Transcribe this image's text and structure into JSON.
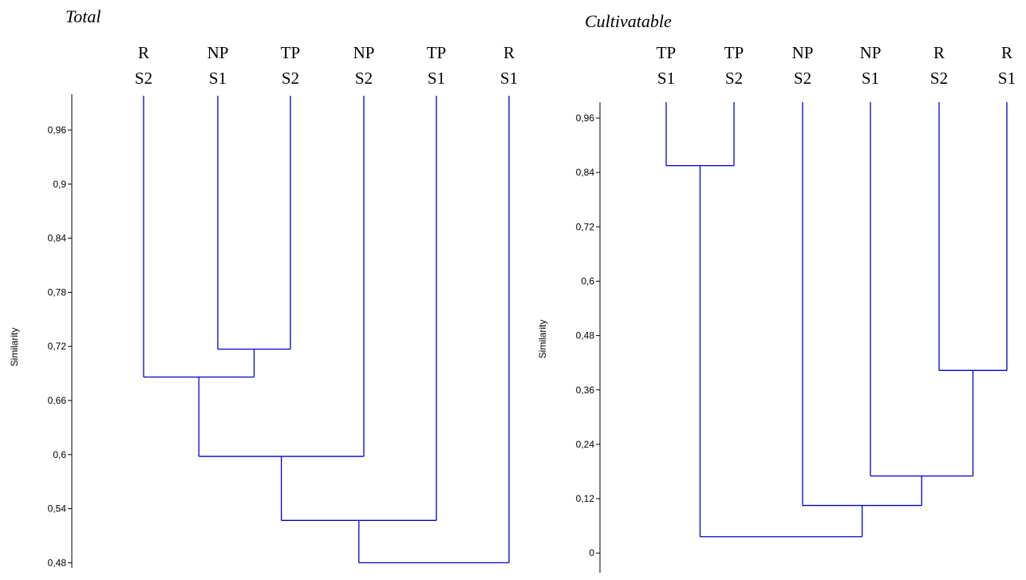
{
  "chart_data": [
    {
      "type": "dendrogram",
      "title": "Total",
      "ylabel": "Similarity",
      "ylim": [
        0.48,
        1.0
      ],
      "yticks": [
        0.48,
        0.54,
        0.6,
        0.66,
        0.72,
        0.78,
        0.84,
        0.9,
        0.96
      ],
      "ytick_labels": [
        "0,48",
        "0,54",
        "0,6",
        "0,66",
        "0,72",
        "0,78",
        "0,84",
        "0,9",
        "0,96"
      ],
      "leaves": [
        {
          "top": "R",
          "bottom": "S2"
        },
        {
          "top": "NP",
          "bottom": "S1"
        },
        {
          "top": "TP",
          "bottom": "S2"
        },
        {
          "top": "NP",
          "bottom": "S2"
        },
        {
          "top": "TP",
          "bottom": "S1"
        },
        {
          "top": "R",
          "bottom": "S1"
        }
      ],
      "merges": [
        {
          "left": 1,
          "right": 2,
          "similarity": 0.717
        },
        {
          "left": 0,
          "right": 6,
          "similarity": 0.686
        },
        {
          "left": 7,
          "right": 3,
          "similarity": 0.598
        },
        {
          "left": 8,
          "right": 4,
          "similarity": 0.527
        },
        {
          "left": 9,
          "right": 5,
          "similarity": 0.48
        }
      ],
      "line_color": "#0000cc"
    },
    {
      "type": "dendrogram",
      "title": "Cultivatable",
      "ylabel": "Similarity",
      "ylim": [
        -0.06,
        1.0
      ],
      "yticks": [
        0,
        0.12,
        0.24,
        0.36,
        0.48,
        0.6,
        0.72,
        0.84,
        0.96
      ],
      "ytick_labels": [
        "0",
        "0,12",
        "0,24",
        "0,36",
        "0,48",
        "0,6",
        "0,72",
        "0,84",
        "0,96"
      ],
      "leaves": [
        {
          "top": "TP",
          "bottom": "S1"
        },
        {
          "top": "TP",
          "bottom": "S2"
        },
        {
          "top": "NP",
          "bottom": "S2"
        },
        {
          "top": "NP",
          "bottom": "S1"
        },
        {
          "top": "R",
          "bottom": "S2"
        },
        {
          "top": "R",
          "bottom": "S1"
        }
      ],
      "merges": [
        {
          "left": 0,
          "right": 1,
          "similarity": 0.855
        },
        {
          "left": 4,
          "right": 5,
          "similarity": 0.403
        },
        {
          "left": 3,
          "right": 7,
          "similarity": 0.17
        },
        {
          "left": 2,
          "right": 8,
          "similarity": 0.105
        },
        {
          "left": 6,
          "right": 9,
          "similarity": 0.036
        }
      ],
      "line_color": "#0000cc"
    }
  ]
}
